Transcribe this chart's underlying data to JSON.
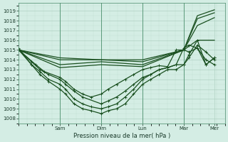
{
  "xlabel": "Pression niveau de la mer( hPa )",
  "bg_color": "#d4ede4",
  "grid_color_major": "#a8ccbb",
  "grid_color_minor": "#bdddd0",
  "line_color": "#1a5020",
  "ylim": [
    1007.5,
    1019.8
  ],
  "xlim": [
    0,
    4.85
  ],
  "yticks": [
    1008,
    1009,
    1010,
    1011,
    1012,
    1013,
    1014,
    1015,
    1016,
    1017,
    1018,
    1019
  ],
  "day_labels": [
    "Sam",
    "Dim",
    "Lun",
    "Mar",
    "Mer"
  ],
  "day_positions": [
    0.97,
    1.94,
    2.91,
    3.88,
    4.6
  ],
  "series": [
    {
      "points": [
        [
          0,
          1015.0
        ],
        [
          0.97,
          1014.2
        ],
        [
          1.94,
          1014.0
        ],
        [
          2.91,
          1014.0
        ],
        [
          3.88,
          1015.0
        ],
        [
          4.2,
          1018.5
        ],
        [
          4.6,
          1019.1
        ]
      ],
      "marker": false
    },
    {
      "points": [
        [
          0,
          1015.0
        ],
        [
          0.97,
          1014.0
        ],
        [
          1.94,
          1014.0
        ],
        [
          2.91,
          1013.8
        ],
        [
          3.88,
          1015.0
        ],
        [
          4.2,
          1018.2
        ],
        [
          4.6,
          1018.8
        ]
      ],
      "marker": false
    },
    {
      "points": [
        [
          0,
          1015.0
        ],
        [
          0.97,
          1013.5
        ],
        [
          1.94,
          1013.8
        ],
        [
          2.91,
          1013.5
        ],
        [
          3.88,
          1015.0
        ],
        [
          4.2,
          1017.5
        ],
        [
          4.6,
          1018.3
        ]
      ],
      "marker": false
    },
    {
      "points": [
        [
          0,
          1015.0
        ],
        [
          0.97,
          1013.2
        ],
        [
          1.94,
          1013.5
        ],
        [
          2.91,
          1013.3
        ],
        [
          3.88,
          1015.0
        ],
        [
          4.2,
          1016.0
        ],
        [
          4.6,
          1016.0
        ]
      ],
      "marker": false
    },
    {
      "points": [
        [
          0,
          1015.0
        ],
        [
          0.4,
          1013.5
        ],
        [
          0.6,
          1012.8
        ],
        [
          0.97,
          1012.2
        ],
        [
          1.1,
          1011.8
        ],
        [
          1.3,
          1011.0
        ],
        [
          1.5,
          1010.5
        ],
        [
          1.7,
          1010.2
        ],
        [
          1.94,
          1010.5
        ],
        [
          2.1,
          1011.0
        ],
        [
          2.3,
          1011.5
        ],
        [
          2.5,
          1012.0
        ],
        [
          2.7,
          1012.5
        ],
        [
          2.91,
          1013.0
        ],
        [
          3.1,
          1013.2
        ],
        [
          3.3,
          1013.4
        ],
        [
          3.5,
          1013.3
        ],
        [
          3.7,
          1015.0
        ],
        [
          3.88,
          1015.0
        ],
        [
          4.0,
          1014.8
        ],
        [
          4.2,
          1015.2
        ],
        [
          4.4,
          1013.5
        ],
        [
          4.6,
          1014.2
        ]
      ],
      "marker": true
    },
    {
      "points": [
        [
          0,
          1015.0
        ],
        [
          0.3,
          1013.8
        ],
        [
          0.5,
          1013.0
        ],
        [
          0.7,
          1012.5
        ],
        [
          0.97,
          1012.0
        ],
        [
          1.1,
          1011.5
        ],
        [
          1.3,
          1010.8
        ],
        [
          1.5,
          1010.2
        ],
        [
          1.94,
          1009.5
        ],
        [
          2.1,
          1009.8
        ],
        [
          2.3,
          1010.2
        ],
        [
          2.5,
          1010.8
        ],
        [
          2.7,
          1011.5
        ],
        [
          2.91,
          1012.2
        ],
        [
          3.1,
          1012.5
        ],
        [
          3.3,
          1013.0
        ],
        [
          3.5,
          1013.2
        ],
        [
          3.7,
          1013.5
        ],
        [
          3.88,
          1013.5
        ],
        [
          4.0,
          1014.2
        ],
        [
          4.2,
          1015.5
        ],
        [
          4.4,
          1014.8
        ],
        [
          4.6,
          1014.0
        ]
      ],
      "marker": true
    },
    {
      "points": [
        [
          0,
          1015.0
        ],
        [
          0.3,
          1013.5
        ],
        [
          0.5,
          1012.8
        ],
        [
          0.7,
          1012.0
        ],
        [
          0.97,
          1011.5
        ],
        [
          1.1,
          1011.0
        ],
        [
          1.3,
          1010.0
        ],
        [
          1.5,
          1009.5
        ],
        [
          1.7,
          1009.2
        ],
        [
          1.94,
          1009.0
        ],
        [
          2.1,
          1009.2
        ],
        [
          2.3,
          1009.5
        ],
        [
          2.5,
          1010.2
        ],
        [
          2.7,
          1011.0
        ],
        [
          2.91,
          1012.0
        ],
        [
          3.1,
          1012.5
        ],
        [
          3.3,
          1013.0
        ],
        [
          3.5,
          1013.2
        ],
        [
          3.7,
          1013.5
        ],
        [
          3.88,
          1015.2
        ],
        [
          4.0,
          1015.5
        ],
        [
          4.2,
          1015.2
        ],
        [
          4.4,
          1014.0
        ],
        [
          4.6,
          1013.5
        ]
      ],
      "marker": true
    },
    {
      "points": [
        [
          0,
          1015.2
        ],
        [
          0.3,
          1013.5
        ],
        [
          0.5,
          1012.5
        ],
        [
          0.7,
          1011.8
        ],
        [
          0.97,
          1011.0
        ],
        [
          1.1,
          1010.5
        ],
        [
          1.3,
          1009.5
        ],
        [
          1.5,
          1009.0
        ],
        [
          1.7,
          1008.8
        ],
        [
          1.94,
          1008.5
        ],
        [
          2.1,
          1008.8
        ],
        [
          2.3,
          1009.0
        ],
        [
          2.5,
          1009.5
        ],
        [
          2.7,
          1010.5
        ],
        [
          2.91,
          1011.5
        ],
        [
          3.1,
          1012.0
        ],
        [
          3.3,
          1012.5
        ],
        [
          3.5,
          1013.0
        ],
        [
          3.7,
          1013.0
        ],
        [
          3.88,
          1013.5
        ],
        [
          4.0,
          1014.5
        ],
        [
          4.2,
          1016.0
        ],
        [
          4.4,
          1013.5
        ],
        [
          4.6,
          1014.2
        ]
      ],
      "marker": true
    }
  ]
}
